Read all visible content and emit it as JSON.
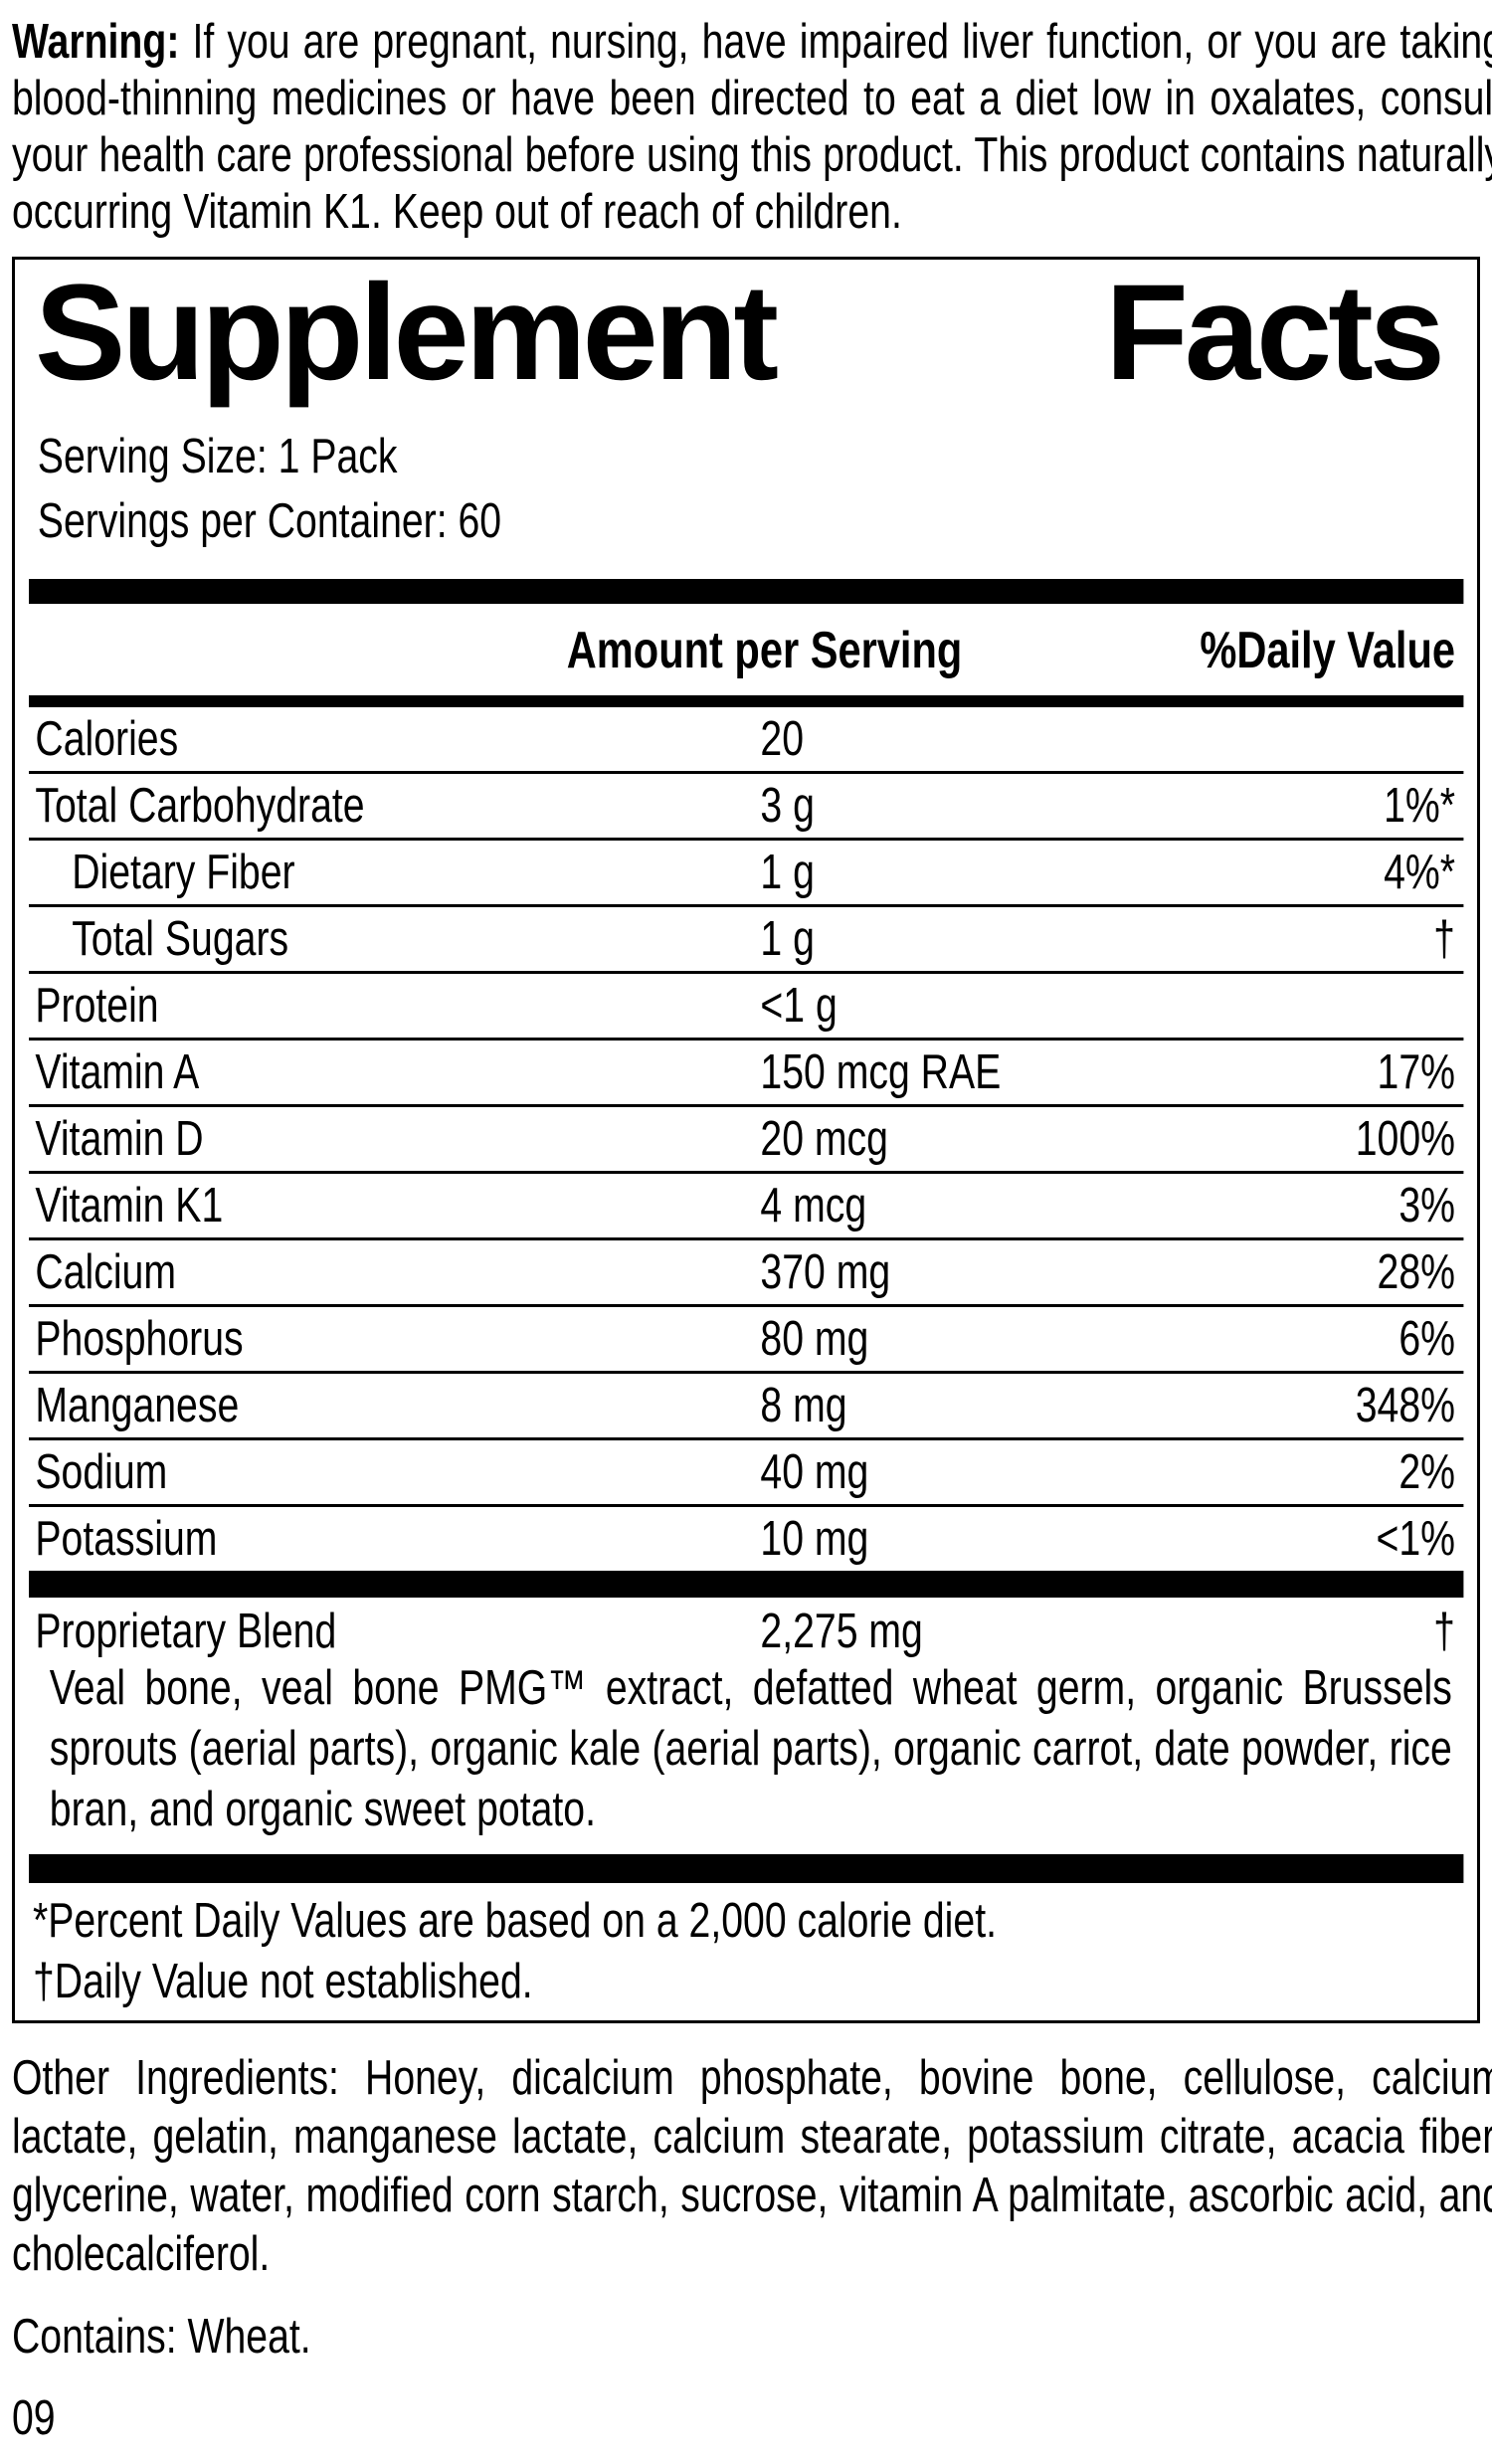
{
  "warning": {
    "label": "Warning:",
    "text": " If you are pregnant, nursing, have impaired liver function, or you are taking blood-thinning medicines or have been directed to eat a diet low in oxalates, consult your health care professional before using this product. This product contains naturally occurring Vitamin K1. Keep out of reach of children."
  },
  "panel": {
    "title_left": "Supplement",
    "title_right": "Facts",
    "serving_size": "Serving Size: 1 Pack",
    "servings_per_container": "Servings per Container: 60",
    "columns": {
      "amount": "Amount per Serving",
      "daily_value": "%Daily Value"
    },
    "rows": [
      {
        "name": "Calories",
        "amount": "20",
        "dv": ""
      },
      {
        "name": "Total Carbohydrate",
        "amount": "3 g",
        "dv": "1%*"
      },
      {
        "name": "Dietary Fiber",
        "amount": "1 g",
        "dv": "4%*"
      },
      {
        "name": "Total Sugars",
        "amount": "1 g",
        "dv": "†"
      },
      {
        "name": "Protein",
        "amount": "<1 g",
        "dv": ""
      },
      {
        "name": "Vitamin A",
        "amount": "150 mcg RAE",
        "dv": "17%"
      },
      {
        "name": "Vitamin D",
        "amount": "20 mcg",
        "dv": "100%"
      },
      {
        "name": "Vitamin K1",
        "amount": "4 mcg",
        "dv": "3%"
      },
      {
        "name": "Calcium",
        "amount": "370 mg",
        "dv": "28%"
      },
      {
        "name": "Phosphorus",
        "amount": "80 mg",
        "dv": "6%"
      },
      {
        "name": "Manganese",
        "amount": "8 mg",
        "dv": "348%"
      },
      {
        "name": "Sodium",
        "amount": "40 mg",
        "dv": "2%"
      },
      {
        "name": "Potassium",
        "amount": "10 mg",
        "dv": "<1%"
      }
    ],
    "proprietary_blend": {
      "name": "Proprietary Blend",
      "amount": "2,275 mg",
      "dv": "†",
      "description": "Veal bone, veal bone PMG™ extract, defatted wheat germ, organic Brussels sprouts (aerial parts), organic kale (aerial parts), organic carrot, date powder, rice bran, and organic sweet potato."
    },
    "footnotes": [
      "*Percent Daily Values are based on a 2,000 calorie diet.",
      "†Daily Value not established."
    ]
  },
  "other_ingredients": "Other Ingredients: Honey, dicalcium phosphate, bovine bone, cellulose, calcium lactate, gelatin, manganese lactate, calcium stearate, potassium citrate, acacia fiber, glycerine, water, modified corn starch, sucrose, vitamin A palmitate, ascorbic acid, and cholecalciferol.",
  "contains": "Contains: Wheat.",
  "code": "09"
}
